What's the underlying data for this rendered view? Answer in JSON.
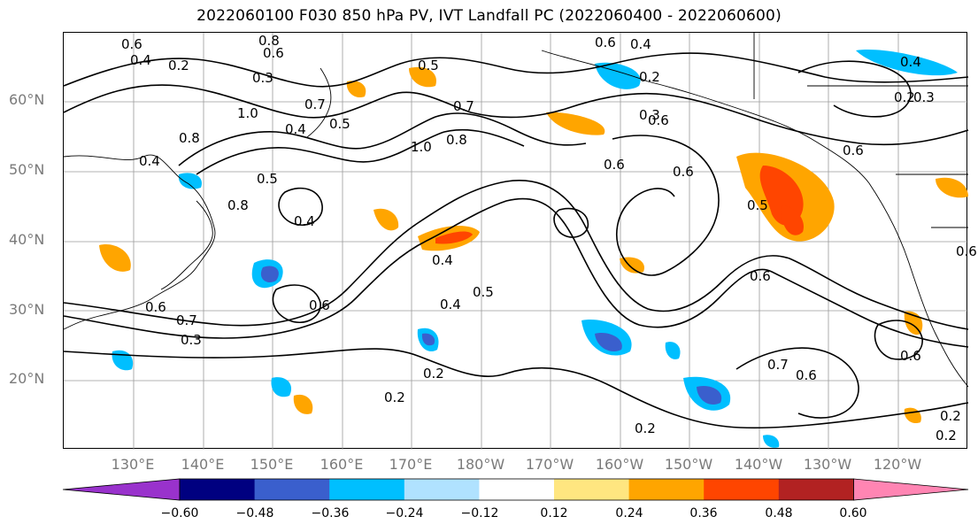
{
  "title": "2022060100 F030 850 hPa PV, IVT Landfall PC (2022060400 - 2022060600)",
  "lat_labels": [
    "60°N",
    "50°N",
    "40°N",
    "30°N",
    "20°N"
  ],
  "lon_labels": [
    "130°E",
    "140°E",
    "150°E",
    "160°E",
    "170°E",
    "180°W",
    "170°W",
    "160°W",
    "150°W",
    "140°W",
    "130°W",
    "120°W"
  ],
  "colorbar": {
    "ticks": [
      "−0.60",
      "−0.48",
      "−0.36",
      "−0.24",
      "−0.12",
      "0.12",
      "0.24",
      "0.36",
      "0.48",
      "0.60"
    ],
    "colors": [
      "#9932cc",
      "#000080",
      "#3a5fcd",
      "#00bfff",
      "#b0e2ff",
      "#ffffff",
      "#ffe680",
      "#ffa500",
      "#ff4500",
      "#b22222",
      "#ff85b3"
    ]
  },
  "contour_labels": [
    "0.6",
    "0.8",
    "0.4",
    "0.2",
    "0.3",
    "0.6",
    "0.5",
    "0.4",
    "0.2",
    "0.4",
    "0.3",
    "0.6",
    "1.0",
    "0.7",
    "0.7",
    "0.4",
    "0.6",
    "0.5",
    "0.8",
    "0.6",
    "0.4",
    "1.0",
    "0.8",
    "0.6",
    "0.6",
    "0.8",
    "0.5",
    "0.4",
    "0.5",
    "0.4",
    "0.6",
    "0.7",
    "0.3",
    "0.6",
    "0.6",
    "0.2",
    "0.2",
    "0.2",
    "0.7",
    "0.6",
    "0.2",
    "0.2",
    "0.6",
    "0.2",
    "0.4",
    "0.5",
    "0.6",
    "0.3"
  ]
}
